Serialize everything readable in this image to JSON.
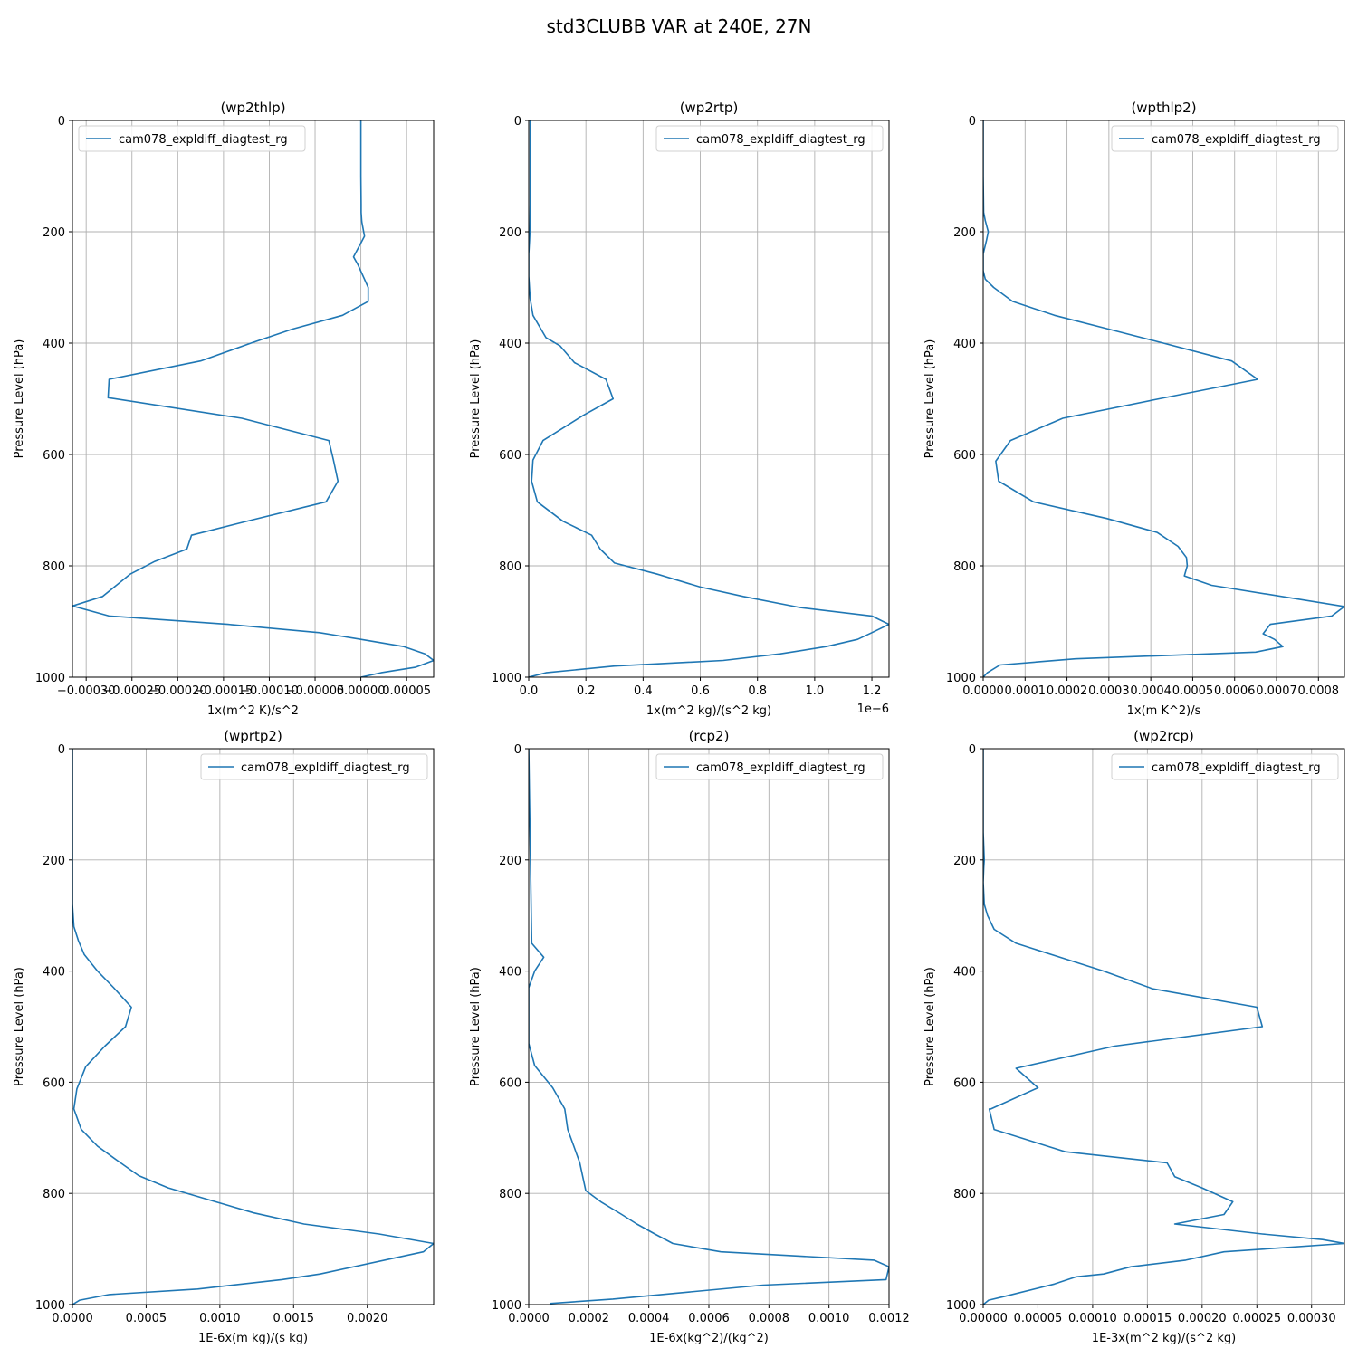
{
  "figure_title": "std3CLUBB VAR at 240E, 27N",
  "colors": {
    "series": "#1f77b4",
    "grid": "#b0b0b0"
  },
  "chart_data": [
    {
      "type": "line",
      "title": "(wp2thlp)",
      "xlabel": "1x(m^2 K)/s^2",
      "ylabel": "Pressure Level (hPa)",
      "offset_text": "",
      "legend": "cam078_expldiff_diagtest_rg",
      "legend_loc": "upper left",
      "xlim": [
        -0.000315,
        7.95e-05
      ],
      "ylim": [
        1000,
        0
      ],
      "xticks": [
        -0.0003,
        -0.00025,
        -0.0002,
        -0.00015,
        -0.0001,
        -5e-05,
        0.0,
        5e-05
      ],
      "xtick_labels": [
        "−0.00030",
        "−0.00025",
        "−0.00020",
        "−0.00015",
        "−0.00010",
        "−0.00005",
        "0.00000",
        "0.00005"
      ],
      "yticks": [
        0,
        200,
        400,
        600,
        800,
        1000
      ],
      "ytick_labels": [
        "0",
        "200",
        "400",
        "600",
        "800",
        "1000"
      ],
      "series": [
        {
          "name": "cam078_expldiff_diagtest_rg",
          "x": [
            0.0,
            0.0,
            0.0,
            3e-07,
            3e-07,
            1e-06,
            4e-06,
            -8e-06,
            -3e-06,
            8e-06,
            8e-06,
            -2e-05,
            -7.5e-05,
            -0.00012,
            -0.000175,
            -0.000275,
            -0.000276,
            -0.00013,
            -3.5e-05,
            -3e-05,
            -2.5e-05,
            -3.8e-05,
            -0.00012,
            -0.000185,
            -0.00019,
            -0.000225,
            -0.000252,
            -0.000282,
            -0.000315,
            -0.000275,
            -0.000145,
            -4.5e-05,
            0.0,
            4.7e-05,
            7e-05,
            7.95e-05,
            6e-05,
            2.2e-05,
            0.0
          ],
          "y": [
            0,
            50,
            100,
            150,
            165,
            182,
            208,
            245,
            260,
            300,
            325,
            350,
            375,
            400,
            432,
            465,
            498,
            535,
            575,
            610,
            648,
            685,
            718,
            745,
            770,
            792,
            815,
            855,
            872,
            890,
            905,
            920,
            932,
            945,
            958,
            970,
            982,
            992,
            1000
          ]
        }
      ]
    },
    {
      "type": "line",
      "title": "(wp2rtp)",
      "xlabel": "1x(m^2 kg)/(s^2 kg)",
      "ylabel": "Pressure Level (hPa)",
      "offset_text": "1e−6",
      "legend": "cam078_expldiff_diagtest_rg",
      "legend_loc": "upper right",
      "xlim": [
        0,
        1.26
      ],
      "ylim": [
        1000,
        0
      ],
      "xticks": [
        0.0,
        0.2,
        0.4,
        0.6,
        0.8,
        1.0,
        1.2
      ],
      "xtick_labels": [
        "0.0",
        "0.2",
        "0.4",
        "0.6",
        "0.8",
        "1.0",
        "1.2"
      ],
      "yticks": [
        0,
        200,
        400,
        600,
        800,
        1000
      ],
      "ytick_labels": [
        "0",
        "200",
        "400",
        "600",
        "800",
        "1000"
      ],
      "series": [
        {
          "name": "cam078_expldiff_diagtest_rg",
          "x": [
            0.005,
            0.005,
            0.004,
            0.003,
            0.0,
            0.0,
            0.005,
            0.015,
            0.06,
            0.11,
            0.16,
            0.27,
            0.295,
            0.19,
            0.05,
            0.015,
            0.01,
            0.03,
            0.12,
            0.22,
            0.25,
            0.3,
            0.45,
            0.6,
            0.75,
            0.95,
            1.2,
            1.26,
            1.2,
            1.15,
            1.04,
            0.88,
            0.68,
            0.3,
            0.06,
            0.0
          ],
          "y": [
            0,
            150,
            200,
            215,
            240,
            280,
            320,
            350,
            390,
            405,
            435,
            465,
            500,
            530,
            575,
            610,
            648,
            685,
            720,
            745,
            770,
            795,
            815,
            838,
            855,
            875,
            890,
            905,
            920,
            932,
            945,
            958,
            970,
            980,
            992,
            1000
          ]
        }
      ]
    },
    {
      "type": "line",
      "title": "(wpthlp2)",
      "xlabel": "1x(m K^2)/s",
      "ylabel": "Pressure Level (hPa)",
      "offset_text": "",
      "legend": "cam078_expldiff_diagtest_rg",
      "legend_loc": "upper right",
      "xlim": [
        0,
        0.000862
      ],
      "ylim": [
        1000,
        0
      ],
      "xticks": [
        0.0,
        0.0001,
        0.0002,
        0.0003,
        0.0004,
        0.0005,
        0.0006,
        0.0007,
        0.0008
      ],
      "xtick_labels": [
        "0.0000",
        "0.0001",
        "0.0002",
        "0.0003",
        "0.0004",
        "0.0005",
        "0.0006",
        "0.0007",
        "0.0008"
      ],
      "yticks": [
        0,
        200,
        400,
        600,
        800,
        1000
      ],
      "ytick_labels": [
        "0",
        "200",
        "400",
        "600",
        "800",
        "1000"
      ],
      "series": [
        {
          "name": "cam078_expldiff_diagtest_rg",
          "x": [
            0.0,
            0.0,
            1e-06,
            5e-06,
            1.2e-05,
            8e-06,
            0.0,
            0.0,
            5e-06,
            2.5e-05,
            7e-05,
            0.00017,
            0.0003,
            0.00043,
            0.000593,
            0.000655,
            0.00042,
            0.00019,
            6.5e-05,
            3e-05,
            3.7e-05,
            0.00012,
            0.000295,
            0.000415,
            0.000465,
            0.000485,
            0.000487,
            0.00048,
            0.000545,
            0.000862,
            0.000832,
            0.000685,
            0.000668,
            0.000695,
            0.000715,
            0.00065,
            0.00022,
            4e-05,
            1e-05,
            0.0
          ],
          "y": [
            0,
            100,
            165,
            180,
            200,
            215,
            240,
            270,
            285,
            300,
            325,
            350,
            375,
            400,
            432,
            465,
            500,
            535,
            575,
            612,
            648,
            685,
            715,
            740,
            765,
            785,
            800,
            818,
            835,
            873,
            890,
            905,
            922,
            932,
            945,
            955,
            967,
            978,
            992,
            1000
          ]
        }
      ]
    },
    {
      "type": "line",
      "title": "(wprtp2)",
      "xlabel": "1E-6x(m kg)/(s kg)",
      "ylabel": "Pressure Level (hPa)",
      "offset_text": "",
      "legend": "cam078_expldiff_diagtest_rg",
      "legend_loc": "upper right",
      "xlim": [
        0,
        0.00245
      ],
      "ylim": [
        1000,
        0
      ],
      "xticks": [
        0.0,
        0.0005,
        0.001,
        0.0015,
        0.002
      ],
      "xtick_labels": [
        "0.0000",
        "0.0005",
        "0.0010",
        "0.0015",
        "0.0020"
      ],
      "yticks": [
        0,
        200,
        400,
        600,
        800,
        1000
      ],
      "ytick_labels": [
        "0",
        "200",
        "400",
        "600",
        "800",
        "1000"
      ],
      "series": [
        {
          "name": "cam078_expldiff_diagtest_rg",
          "x": [
            0.0,
            0.0,
            1e-05,
            4e-05,
            8e-05,
            0.00017,
            0.00028,
            0.0004,
            0.00036,
            0.00022,
            9e-05,
            3e-05,
            1e-05,
            6e-05,
            0.00017,
            0.0003,
            0.00045,
            0.00065,
            0.00097,
            0.00123,
            0.00157,
            0.00208,
            0.00245,
            0.00238,
            0.00168,
            0.00142,
            0.00085,
            0.00025,
            5e-05,
            0.0
          ],
          "y": [
            0,
            280,
            320,
            345,
            370,
            400,
            430,
            465,
            500,
            535,
            572,
            612,
            648,
            685,
            715,
            740,
            768,
            790,
            815,
            835,
            855,
            873,
            890,
            905,
            945,
            955,
            972,
            982,
            992,
            1000
          ]
        }
      ]
    },
    {
      "type": "line",
      "title": "(rcp2)",
      "xlabel": "1E-6x(kg^2)/(kg^2)",
      "ylabel": "Pressure Level (hPa)",
      "offset_text": "",
      "legend": "cam078_expldiff_diagtest_rg",
      "legend_loc": "upper right",
      "xlim": [
        0,
        0.0012
      ],
      "ylim": [
        1000,
        0
      ],
      "xticks": [
        0.0,
        0.0002,
        0.0004,
        0.0006,
        0.0008,
        0.001,
        0.0012
      ],
      "xtick_labels": [
        "0.0000",
        "0.0002",
        "0.0004",
        "0.0006",
        "0.0008",
        "0.0010",
        "0.0012"
      ],
      "yticks": [
        0,
        200,
        400,
        600,
        800,
        1000
      ],
      "ytick_labels": [
        "0",
        "200",
        "400",
        "600",
        "800",
        "1000"
      ],
      "series": [
        {
          "name": "cam078_expldiff_diagtest_rg",
          "x": [
            0.0,
            1e-05,
            5e-05,
            2e-05,
            0.0,
            0.0,
            0.0,
            0.0,
            2e-05,
            8e-05,
            0.00012,
            0.00013,
            0.00015,
            0.00017,
            0.00018,
            0.00019,
            0.00024,
            0.00031,
            0.00036,
            0.00042,
            0.00048,
            0.00064,
            0.00115,
            0.0012,
            0.00119,
            0.00078,
            0.00028,
            7e-05
          ],
          "y": [
            0,
            350,
            375,
            400,
            430,
            465,
            500,
            530,
            570,
            610,
            648,
            685,
            715,
            745,
            770,
            795,
            815,
            838,
            855,
            873,
            890,
            905,
            920,
            932,
            955,
            965,
            990,
            998
          ]
        }
      ]
    },
    {
      "type": "line",
      "title": "(wp2rcp)",
      "xlabel": "1E-3x(m^2 kg)/(s^2 kg)",
      "ylabel": "Pressure Level (hPa)",
      "offset_text": "",
      "legend": "cam078_expldiff_diagtest_rg",
      "legend_loc": "upper right",
      "xlim": [
        0,
        0.00033
      ],
      "ylim": [
        1000,
        0
      ],
      "xticks": [
        0.0,
        5e-05,
        0.0001,
        0.00015,
        0.0002,
        0.00025,
        0.0003
      ],
      "xtick_labels": [
        "0.00000",
        "0.00005",
        "0.00010",
        "0.00015",
        "0.00020",
        "0.00025",
        "0.00030"
      ],
      "yticks": [
        0,
        200,
        400,
        600,
        800,
        1000
      ],
      "ytick_labels": [
        "0",
        "200",
        "400",
        "600",
        "800",
        "1000"
      ],
      "series": [
        {
          "name": "cam078_expldiff_diagtest_rg",
          "x": [
            0.0,
            0.0,
            1e-06,
            5e-07,
            0.0,
            1e-06,
            4e-06,
            1e-05,
            3e-05,
            7e-05,
            0.00011,
            0.000155,
            0.00025,
            0.000255,
            0.00012,
            3e-05,
            5e-05,
            7e-06,
            5.5e-06,
            1e-05,
            7.5e-05,
            0.000168,
            0.000175,
            0.0002,
            0.000228,
            0.00022,
            0.000175,
            0.000255,
            0.00031,
            0.00033,
            0.00022,
            0.000185,
            0.000135,
            0.00011,
            8.5e-05,
            6.5e-05,
            2e-05,
            5e-06,
            0.0
          ],
          "y": [
            0,
            150,
            200,
            215,
            240,
            280,
            300,
            325,
            350,
            375,
            400,
            432,
            465,
            500,
            535,
            575,
            610,
            648,
            648,
            685,
            725,
            745,
            770,
            790,
            815,
            838,
            855,
            873,
            883,
            890,
            905,
            920,
            932,
            945,
            950,
            963,
            985,
            992,
            1000
          ]
        }
      ]
    }
  ]
}
